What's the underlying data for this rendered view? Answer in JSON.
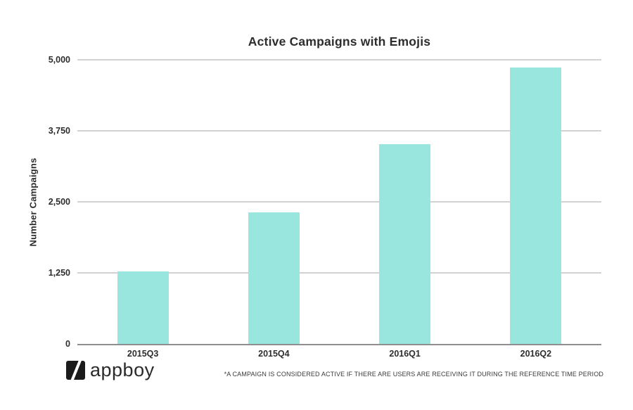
{
  "page": {
    "background": "#ffffff"
  },
  "header": {
    "title": "Active Campaigns with Emojis"
  },
  "chart_data": {
    "type": "bar",
    "title": "Active Campaigns with Emojis",
    "categories": [
      "2015Q3",
      "2015Q4",
      "2016Q1",
      "2016Q2"
    ],
    "values": [
      1280,
      2310,
      3510,
      4860
    ],
    "xlabel": "",
    "ylabel": "Number Campaigns",
    "ylim": [
      0,
      5000
    ],
    "yticks": [
      0,
      1250,
      2500,
      3750,
      5000
    ],
    "ytick_labels": [
      "0",
      "1,250",
      "2,500",
      "3,750",
      "5,000"
    ],
    "grid": true,
    "legend": false,
    "bar_color": "#98e6de"
  },
  "colors": {
    "bar": "#98e6de",
    "gridline": "#d2d2d2",
    "axis_line": "#8f8f8f",
    "text": "#2d2d2d",
    "logo": "#1b1b1b"
  },
  "footer": {
    "logo_text": "appboy",
    "logo_icon": "appboy-slash-icon",
    "footnote": "*A CAMPAIGN IS CONSIDERED ACTIVE IF THERE ARE USERS ARE RECEIVING IT DURING THE REFERENCE TIME PERIOD"
  }
}
